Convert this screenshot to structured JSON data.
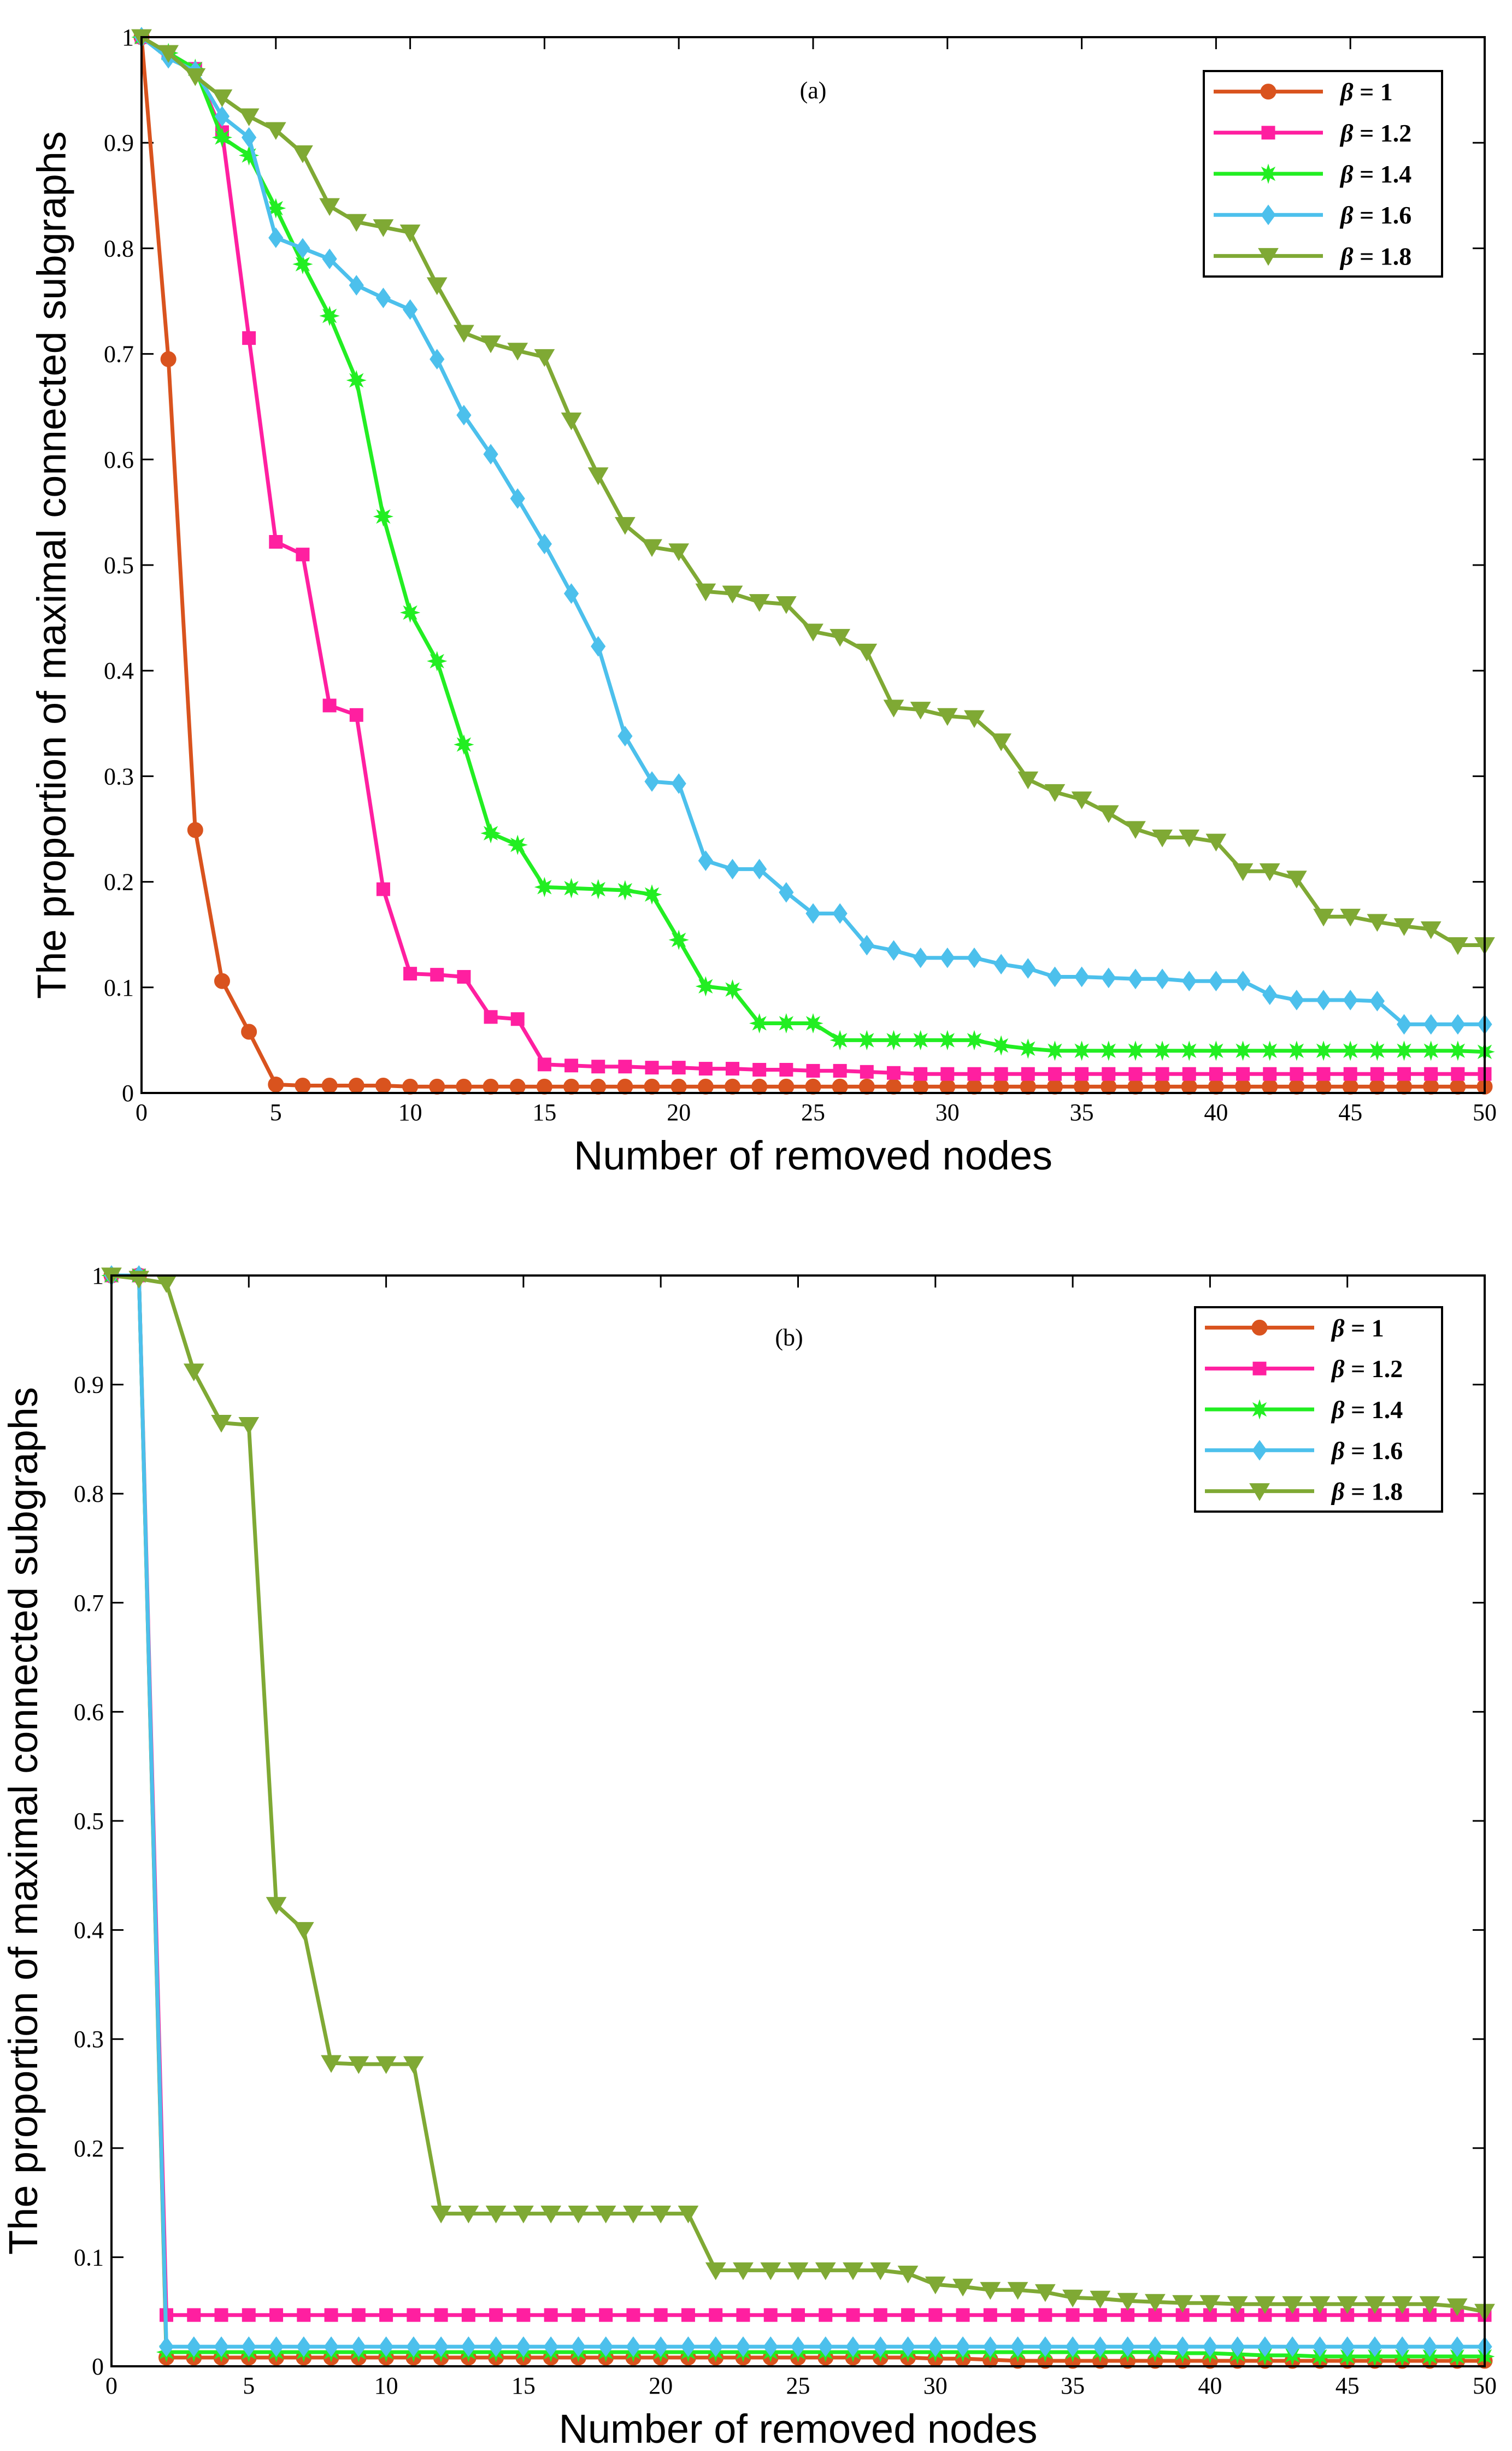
{
  "chart_data": [
    {
      "type": "line",
      "panel_label": "(a)",
      "xlabel": "Number of removed nodes",
      "ylabel": "The proportion of maximal connected subgraphs",
      "xlim": [
        0,
        50
      ],
      "ylim": [
        0,
        1
      ],
      "xticks": [
        0,
        5,
        10,
        15,
        20,
        25,
        30,
        35,
        40,
        45,
        50
      ],
      "yticks": [
        0,
        0.1,
        0.2,
        0.3,
        0.4,
        0.5,
        0.6,
        0.7,
        0.8,
        0.9,
        1
      ],
      "ytick_labels": [
        "0",
        "0.1",
        "0.2",
        "0.3",
        "0.4",
        "0.5",
        "0.6",
        "0.7",
        "0.8",
        "0.9",
        "1"
      ],
      "legend_position": "top-right",
      "series": [
        {
          "name": "β = 1",
          "symbol": "β",
          "value_text": "= 1",
          "color": "#d9531e",
          "marker": "circle",
          "values": [
            1,
            0.695,
            0.249,
            0.106,
            0.058,
            0.008,
            0.007,
            0.007,
            0.007,
            0.007,
            0.006,
            0.006,
            0.006,
            0.006,
            0.006,
            0.006,
            0.006,
            0.006,
            0.006,
            0.006,
            0.006,
            0.006,
            0.006,
            0.006,
            0.006,
            0.006,
            0.006,
            0.006,
            0.006,
            0.006,
            0.006,
            0.006,
            0.006,
            0.006,
            0.006,
            0.006,
            0.006,
            0.006,
            0.006,
            0.006,
            0.006,
            0.006,
            0.006,
            0.006,
            0.006,
            0.006,
            0.006,
            0.006,
            0.006,
            0.006,
            0.006
          ]
        },
        {
          "name": "β = 1.2",
          "symbol": "β",
          "value_text": "= 1.2",
          "color": "#ff1fa0",
          "marker": "square",
          "values": [
            1,
            0.985,
            0.97,
            0.91,
            0.715,
            0.522,
            0.51,
            0.367,
            0.358,
            0.193,
            0.113,
            0.112,
            0.11,
            0.072,
            0.07,
            0.027,
            0.026,
            0.025,
            0.025,
            0.024,
            0.024,
            0.023,
            0.023,
            0.022,
            0.022,
            0.021,
            0.021,
            0.02,
            0.019,
            0.018,
            0.018,
            0.018,
            0.018,
            0.018,
            0.018,
            0.018,
            0.018,
            0.018,
            0.018,
            0.018,
            0.018,
            0.018,
            0.018,
            0.018,
            0.018,
            0.018,
            0.018,
            0.018,
            0.018,
            0.018,
            0.018
          ]
        },
        {
          "name": "β = 1.4",
          "symbol": "β",
          "value_text": "= 1.4",
          "color": "#22ee22",
          "marker": "star",
          "values": [
            1,
            0.985,
            0.97,
            0.905,
            0.888,
            0.838,
            0.785,
            0.736,
            0.675,
            0.546,
            0.455,
            0.409,
            0.33,
            0.246,
            0.235,
            0.195,
            0.194,
            0.193,
            0.192,
            0.188,
            0.145,
            0.101,
            0.098,
            0.066,
            0.066,
            0.066,
            0.05,
            0.05,
            0.05,
            0.05,
            0.05,
            0.05,
            0.045,
            0.042,
            0.04,
            0.04,
            0.04,
            0.04,
            0.04,
            0.04,
            0.04,
            0.04,
            0.04,
            0.04,
            0.04,
            0.04,
            0.04,
            0.04,
            0.04,
            0.04,
            0.039
          ]
        },
        {
          "name": "β = 1.6",
          "symbol": "β",
          "value_text": "= 1.6",
          "color": "#4cc0ec",
          "marker": "diamond",
          "values": [
            1,
            0.98,
            0.968,
            0.925,
            0.905,
            0.81,
            0.8,
            0.79,
            0.765,
            0.753,
            0.742,
            0.695,
            0.642,
            0.605,
            0.563,
            0.52,
            0.473,
            0.423,
            0.338,
            0.295,
            0.293,
            0.22,
            0.212,
            0.212,
            0.19,
            0.17,
            0.17,
            0.14,
            0.135,
            0.128,
            0.128,
            0.128,
            0.122,
            0.118,
            0.11,
            0.11,
            0.109,
            0.108,
            0.108,
            0.106,
            0.106,
            0.106,
            0.093,
            0.088,
            0.088,
            0.088,
            0.087,
            0.065,
            0.065,
            0.065,
            0.065
          ]
        },
        {
          "name": "β = 1.8",
          "symbol": "β",
          "value_text": "= 1.8",
          "color": "#7fa934",
          "marker": "triangle-down",
          "values": [
            1,
            0.985,
            0.963,
            0.943,
            0.925,
            0.912,
            0.89,
            0.84,
            0.825,
            0.82,
            0.815,
            0.765,
            0.72,
            0.71,
            0.703,
            0.697,
            0.637,
            0.585,
            0.538,
            0.517,
            0.513,
            0.475,
            0.473,
            0.465,
            0.463,
            0.437,
            0.432,
            0.418,
            0.365,
            0.363,
            0.357,
            0.355,
            0.333,
            0.297,
            0.285,
            0.278,
            0.265,
            0.25,
            0.242,
            0.242,
            0.238,
            0.21,
            0.21,
            0.203,
            0.167,
            0.167,
            0.162,
            0.158,
            0.155,
            0.14,
            0.14
          ]
        }
      ]
    },
    {
      "type": "line",
      "panel_label": "(b)",
      "xlabel": "Number of removed nodes",
      "ylabel": "The proportion of maximal connected subgraphs",
      "xlim": [
        0,
        50
      ],
      "ylim": [
        0,
        1
      ],
      "xticks": [
        0,
        5,
        10,
        15,
        20,
        25,
        30,
        35,
        40,
        45,
        50
      ],
      "yticks": [
        0,
        0.1,
        0.2,
        0.3,
        0.4,
        0.5,
        0.6,
        0.7,
        0.8,
        0.9,
        1
      ],
      "ytick_labels": [
        "0",
        "0.1",
        "0.2",
        "0.3",
        "0.4",
        "0.5",
        "0.6",
        "0.7",
        "0.8",
        "0.9",
        "1"
      ],
      "legend_position": "top-right",
      "series": [
        {
          "name": "β = 1",
          "symbol": "β",
          "value_text": "= 1",
          "color": "#d9531e",
          "marker": "circle",
          "values": [
            1,
            1,
            0.008,
            0.008,
            0.008,
            0.008,
            0.008,
            0.008,
            0.008,
            0.008,
            0.008,
            0.008,
            0.008,
            0.008,
            0.008,
            0.008,
            0.008,
            0.008,
            0.008,
            0.008,
            0.008,
            0.008,
            0.008,
            0.008,
            0.008,
            0.008,
            0.008,
            0.008,
            0.008,
            0.008,
            0.007,
            0.007,
            0.006,
            0.005,
            0.005,
            0.005,
            0.005,
            0.005,
            0.005,
            0.005,
            0.005,
            0.005,
            0.005,
            0.005,
            0.005,
            0.005,
            0.005,
            0.005,
            0.005,
            0.005,
            0.005
          ]
        },
        {
          "name": "β = 1.2",
          "symbol": "β",
          "value_text": "= 1.2",
          "color": "#ff1fa0",
          "marker": "square",
          "values": [
            1,
            1,
            0.047,
            0.047,
            0.047,
            0.047,
            0.047,
            0.047,
            0.047,
            0.047,
            0.047,
            0.047,
            0.047,
            0.047,
            0.047,
            0.047,
            0.047,
            0.047,
            0.047,
            0.047,
            0.047,
            0.047,
            0.047,
            0.047,
            0.047,
            0.047,
            0.047,
            0.047,
            0.047,
            0.047,
            0.047,
            0.047,
            0.047,
            0.047,
            0.047,
            0.047,
            0.047,
            0.047,
            0.047,
            0.047,
            0.047,
            0.047,
            0.047,
            0.047,
            0.047,
            0.047,
            0.047,
            0.047,
            0.047,
            0.047,
            0.047
          ]
        },
        {
          "name": "β = 1.4",
          "symbol": "β",
          "value_text": "= 1.4",
          "color": "#22ee22",
          "marker": "star",
          "values": [
            1,
            1,
            0.013,
            0.013,
            0.013,
            0.013,
            0.013,
            0.013,
            0.013,
            0.013,
            0.013,
            0.013,
            0.013,
            0.013,
            0.013,
            0.013,
            0.013,
            0.013,
            0.013,
            0.013,
            0.013,
            0.013,
            0.013,
            0.013,
            0.013,
            0.013,
            0.013,
            0.013,
            0.013,
            0.013,
            0.013,
            0.013,
            0.013,
            0.013,
            0.013,
            0.013,
            0.013,
            0.013,
            0.013,
            0.012,
            0.012,
            0.011,
            0.01,
            0.01,
            0.009,
            0.009,
            0.009,
            0.009,
            0.009,
            0.009,
            0.009
          ]
        },
        {
          "name": "β = 1.6",
          "symbol": "β",
          "value_text": "= 1.6",
          "color": "#4cc0ec",
          "marker": "diamond",
          "values": [
            1,
            1,
            0.018,
            0.018,
            0.018,
            0.018,
            0.018,
            0.018,
            0.018,
            0.018,
            0.018,
            0.018,
            0.018,
            0.018,
            0.018,
            0.018,
            0.018,
            0.018,
            0.018,
            0.018,
            0.018,
            0.018,
            0.018,
            0.018,
            0.018,
            0.018,
            0.018,
            0.018,
            0.018,
            0.018,
            0.018,
            0.018,
            0.018,
            0.018,
            0.018,
            0.018,
            0.018,
            0.018,
            0.018,
            0.018,
            0.018,
            0.018,
            0.018,
            0.018,
            0.018,
            0.018,
            0.018,
            0.018,
            0.018,
            0.018,
            0.018
          ]
        },
        {
          "name": "β = 1.8",
          "symbol": "β",
          "value_text": "= 1.8",
          "color": "#7fa934",
          "marker": "triangle-down",
          "values": [
            1,
            0.997,
            0.993,
            0.912,
            0.865,
            0.863,
            0.423,
            0.4,
            0.278,
            0.277,
            0.277,
            0.277,
            0.14,
            0.14,
            0.14,
            0.14,
            0.14,
            0.14,
            0.14,
            0.14,
            0.14,
            0.14,
            0.088,
            0.088,
            0.088,
            0.088,
            0.088,
            0.088,
            0.088,
            0.085,
            0.075,
            0.073,
            0.07,
            0.07,
            0.068,
            0.063,
            0.062,
            0.06,
            0.059,
            0.058,
            0.058,
            0.057,
            0.057,
            0.057,
            0.057,
            0.057,
            0.057,
            0.057,
            0.057,
            0.055,
            0.05
          ]
        }
      ]
    }
  ]
}
